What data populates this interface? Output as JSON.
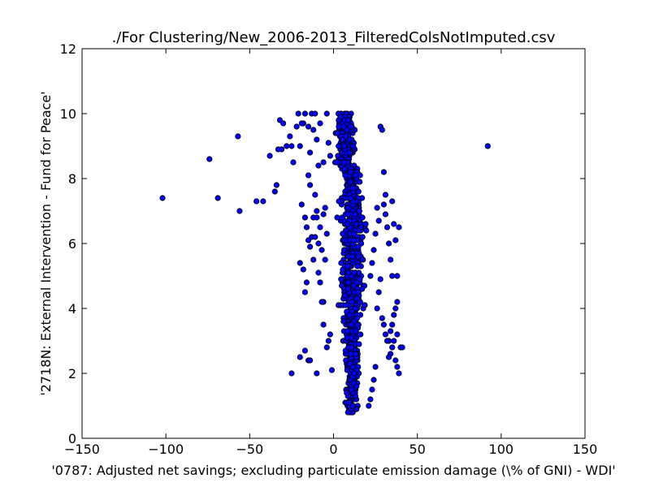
{
  "chart_data": {
    "type": "scatter",
    "title": "./For Clustering/New_2006-2013_FilteredColsNotImputed.csv",
    "xlabel": "'0787: Adjusted net savings; excluding particulate emission damage  (\\% of GNI) - WDI'",
    "ylabel": "'2718N: External Intervention - Fund for Peace'",
    "xlim": [
      -150,
      150
    ],
    "ylim": [
      0,
      12
    ],
    "xticks": [
      -150,
      -100,
      -50,
      0,
      50,
      100,
      150
    ],
    "yticks": [
      0,
      2,
      4,
      6,
      8,
      10,
      12
    ],
    "xtick_labels": [
      "−150",
      "−100",
      "−50",
      "0",
      "50",
      "100",
      "150"
    ],
    "ytick_labels": [
      "0",
      "2",
      "4",
      "6",
      "8",
      "10",
      "12"
    ],
    "grid": false,
    "marker_color": "#0000ff",
    "marker_edge": "#000000",
    "series": [
      {
        "x": [
          -102,
          -74,
          -69,
          -57,
          -56,
          -46,
          -42,
          -38,
          -35,
          -34,
          -33,
          -32,
          -31,
          -30,
          -28,
          -26,
          -25,
          -24,
          -22,
          -20,
          -19,
          -18,
          -17,
          -16,
          -15,
          -14,
          -13,
          -12,
          -11,
          -10,
          -9,
          -8,
          -7,
          -6,
          -5,
          -21,
          -19,
          -17,
          -15,
          -14,
          -13,
          -12,
          -11,
          -10,
          -9,
          -8,
          -6,
          -4,
          -3,
          -2,
          -20,
          -18,
          -17,
          -16,
          -15,
          -14,
          -12,
          -11,
          -10,
          -9,
          -8,
          -7,
          -6,
          -5,
          -4,
          -25,
          -20,
          -17,
          -15,
          -14,
          -10,
          -6,
          -4,
          -3,
          -2,
          -1,
          92,
          35,
          36,
          37,
          38,
          39,
          38,
          37,
          36,
          35,
          34,
          33,
          35,
          37,
          38,
          39,
          40,
          41,
          38,
          36,
          34,
          30,
          31,
          32,
          33,
          34,
          35,
          28,
          27,
          26,
          29,
          30,
          31,
          32,
          33,
          25,
          24,
          23,
          22,
          21,
          28,
          29,
          30,
          31,
          26,
          27,
          25,
          24,
          23,
          22
        ],
        "y": [
          7.4,
          8.6,
          7.4,
          9.3,
          7.0,
          7.3,
          7.3,
          8.7,
          7.6,
          7.8,
          8.9,
          9.8,
          8.9,
          9.7,
          9.0,
          9.3,
          9.0,
          8.5,
          9.6,
          9.0,
          7.2,
          9.7,
          6.8,
          6.5,
          8.1,
          7.8,
          6.2,
          6.8,
          7.5,
          7.0,
          6.0,
          6.5,
          5.8,
          4.2,
          5.5,
          10.0,
          9.7,
          10.0,
          9.6,
          8.8,
          10.0,
          9.5,
          10.0,
          9.2,
          8.4,
          9.7,
          8.5,
          10.0,
          9.1,
          8.7,
          5.4,
          5.2,
          4.5,
          4.8,
          6.1,
          5.9,
          5.5,
          6.2,
          6.8,
          5.1,
          4.8,
          4.2,
          6.9,
          7.1,
          6.3,
          2.0,
          2.5,
          2.7,
          2.4,
          2.4,
          2.0,
          3.5,
          2.8,
          3.0,
          3.2,
          2.1,
          9.0,
          7.3,
          6.6,
          6.1,
          5.0,
          6.5,
          4.2,
          4.0,
          3.8,
          3.5,
          3.3,
          3.0,
          2.8,
          2.4,
          2.2,
          2.0,
          2.8,
          2.8,
          3.2,
          3.0,
          2.6,
          7.2,
          6.9,
          6.5,
          6.0,
          5.5,
          5.0,
          4.9,
          4.5,
          4.0,
          3.7,
          3.5,
          3.2,
          3.0,
          2.5,
          2.2,
          1.8,
          1.5,
          1.2,
          1.0,
          9.6,
          9.5,
          8.2,
          7.5,
          7.1,
          6.7,
          6.3,
          5.8,
          5.4,
          5.0
        ]
      }
    ]
  }
}
